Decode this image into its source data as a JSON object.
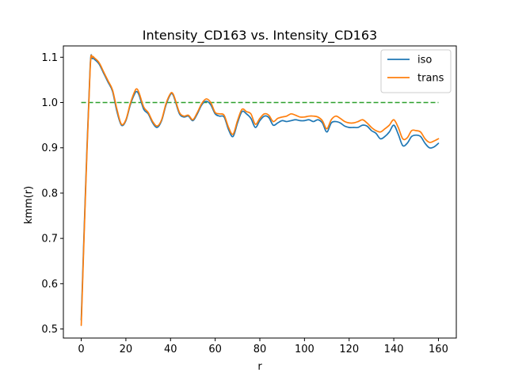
{
  "chart_data": {
    "type": "line",
    "title": "Intensity_CD163 vs. Intensity_CD163",
    "xlabel": "r",
    "ylabel": "kmm(r)",
    "xlim": [
      -8,
      168
    ],
    "ylim": [
      0.48,
      1.125
    ],
    "xticks": [
      0,
      20,
      40,
      60,
      80,
      100,
      120,
      140,
      160
    ],
    "yticks": [
      0.5,
      0.6,
      0.7,
      0.8,
      0.9,
      1.0,
      1.1
    ],
    "ytick_labels": [
      "0.5",
      "0.6",
      "0.7",
      "0.8",
      "0.9",
      "1.0",
      "1.1"
    ],
    "grid": false,
    "legend_position": "top-right",
    "colors": {
      "iso": "#1f77b4",
      "trans": "#ff7f0e",
      "reference": "#2ca02c"
    },
    "series": [
      {
        "name": "iso",
        "x": [
          0,
          2,
          4,
          5,
          6,
          8,
          10,
          12,
          14,
          16,
          18,
          20,
          22,
          24,
          25,
          26,
          28,
          30,
          32,
          34,
          36,
          38,
          40,
          41,
          42,
          44,
          46,
          48,
          50,
          52,
          54,
          56,
          58,
          60,
          62,
          64,
          66,
          68,
          70,
          72,
          74,
          76,
          78,
          80,
          82,
          84,
          86,
          88,
          90,
          92,
          94,
          96,
          98,
          100,
          102,
          104,
          106,
          108,
          110,
          112,
          114,
          116,
          118,
          120,
          122,
          124,
          126,
          128,
          130,
          132,
          134,
          136,
          138,
          140,
          142,
          144,
          146,
          148,
          150,
          152,
          154,
          156,
          158,
          160
        ],
        "y": [
          0.52,
          0.82,
          1.08,
          1.097,
          1.095,
          1.085,
          1.065,
          1.045,
          1.025,
          0.98,
          0.95,
          0.96,
          0.995,
          1.02,
          1.024,
          1.015,
          0.985,
          0.975,
          0.955,
          0.945,
          0.96,
          0.995,
          1.018,
          1.018,
          1.005,
          0.975,
          0.968,
          0.97,
          0.96,
          0.975,
          0.995,
          1.003,
          0.995,
          0.975,
          0.97,
          0.968,
          0.94,
          0.925,
          0.955,
          0.98,
          0.975,
          0.965,
          0.945,
          0.96,
          0.97,
          0.967,
          0.95,
          0.955,
          0.96,
          0.958,
          0.96,
          0.962,
          0.96,
          0.96,
          0.962,
          0.958,
          0.962,
          0.955,
          0.935,
          0.955,
          0.958,
          0.955,
          0.948,
          0.945,
          0.945,
          0.945,
          0.95,
          0.948,
          0.938,
          0.932,
          0.92,
          0.925,
          0.935,
          0.95,
          0.93,
          0.905,
          0.91,
          0.925,
          0.928,
          0.925,
          0.91,
          0.9,
          0.902,
          0.91
        ]
      },
      {
        "name": "trans",
        "x": [
          0,
          2,
          4,
          5,
          6,
          8,
          10,
          12,
          14,
          16,
          18,
          20,
          22,
          24,
          25,
          26,
          28,
          30,
          32,
          34,
          36,
          38,
          40,
          41,
          42,
          44,
          46,
          48,
          50,
          52,
          54,
          56,
          58,
          60,
          62,
          64,
          66,
          68,
          70,
          72,
          74,
          76,
          78,
          80,
          82,
          84,
          86,
          88,
          90,
          92,
          94,
          96,
          98,
          100,
          102,
          104,
          106,
          108,
          110,
          112,
          114,
          116,
          118,
          120,
          122,
          124,
          126,
          128,
          130,
          132,
          134,
          136,
          138,
          140,
          142,
          144,
          146,
          148,
          150,
          152,
          154,
          156,
          158,
          160
        ],
        "y": [
          0.508,
          0.81,
          1.075,
          1.1,
          1.098,
          1.088,
          1.068,
          1.048,
          1.028,
          0.985,
          0.952,
          0.962,
          0.998,
          1.025,
          1.03,
          1.02,
          0.99,
          0.978,
          0.958,
          0.948,
          0.962,
          0.998,
          1.02,
          1.02,
          1.008,
          0.978,
          0.97,
          0.972,
          0.962,
          0.978,
          0.998,
          1.008,
          1.0,
          0.978,
          0.975,
          0.972,
          0.945,
          0.93,
          0.96,
          0.985,
          0.98,
          0.975,
          0.952,
          0.965,
          0.975,
          0.972,
          0.958,
          0.965,
          0.968,
          0.97,
          0.975,
          0.972,
          0.968,
          0.968,
          0.97,
          0.97,
          0.968,
          0.96,
          0.942,
          0.962,
          0.97,
          0.965,
          0.958,
          0.955,
          0.955,
          0.958,
          0.962,
          0.955,
          0.945,
          0.938,
          0.935,
          0.942,
          0.95,
          0.962,
          0.945,
          0.92,
          0.922,
          0.938,
          0.938,
          0.935,
          0.92,
          0.912,
          0.915,
          0.92
        ]
      },
      {
        "name": "",
        "role": "reference",
        "style": "dashed",
        "x": [
          0,
          160
        ],
        "y": [
          1.0,
          1.0
        ]
      }
    ]
  }
}
